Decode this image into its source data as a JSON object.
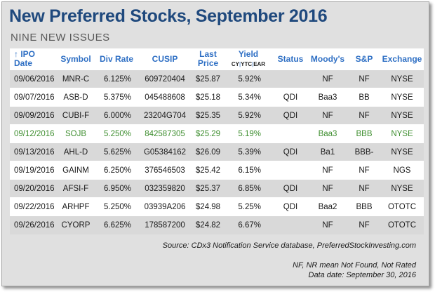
{
  "title": "New Preferred Stocks, September 2016",
  "subtitle": "NINE NEW ISSUES",
  "colors": {
    "title": "#1f497d",
    "header": "#2e6fc4",
    "highlight_row_text": "#3e8e2f",
    "band": "#d9d9d9"
  },
  "table": {
    "headers": {
      "ipo_date": "↑ IPO Date",
      "symbol": "Symbol",
      "div_rate": "Div Rate",
      "cusip": "CUSIP",
      "last_price_1": "Last",
      "last_price_2": "Price",
      "yield": "Yield",
      "yield_sub_cy": "CY",
      "yield_sub_sep1": "|",
      "yield_sub_ytc": "YTC",
      "yield_sub_sep2": "|",
      "yield_sub_ear": "EAR",
      "status": "Status",
      "moodys": "Moody's",
      "sp": "S&P",
      "exchange": "Exchange"
    },
    "rows": [
      {
        "date": "09/06/2016",
        "symbol": "MNR-C",
        "rate": "6.125%",
        "cusip": "609720404",
        "price": "$25.87",
        "yield": "5.92%",
        "status": "",
        "moodys": "NF",
        "sp": "NF",
        "exchange": "NYSE"
      },
      {
        "date": "09/07/2016",
        "symbol": "ASB-D",
        "rate": "5.375%",
        "cusip": "045488608",
        "price": "$25.18",
        "yield": "5.34%",
        "status": "QDI",
        "moodys": "Baa3",
        "sp": "BB",
        "exchange": "NYSE"
      },
      {
        "date": "09/09/2016",
        "symbol": "CUBI-F",
        "rate": "6.000%",
        "cusip": "23204G704",
        "price": "$25.35",
        "yield": "5.92%",
        "status": "QDI",
        "moodys": "NF",
        "sp": "NF",
        "exchange": "NYSE"
      },
      {
        "date": "09/12/2016",
        "symbol": "SOJB",
        "rate": "5.250%",
        "cusip": "842587305",
        "price": "$25.29",
        "yield": "5.19%",
        "status": "",
        "moodys": "Baa3",
        "sp": "BBB",
        "exchange": "NYSE"
      },
      {
        "date": "09/13/2016",
        "symbol": "AHL-D",
        "rate": "5.625%",
        "cusip": "G05384162",
        "price": "$26.09",
        "yield": "5.39%",
        "status": "QDI",
        "moodys": "Ba1",
        "sp": "BBB-",
        "exchange": "NYSE"
      },
      {
        "date": "09/19/2016",
        "symbol": "GAINM",
        "rate": "6.250%",
        "cusip": "376546503",
        "price": "$25.42",
        "yield": "6.15%",
        "status": "",
        "moodys": "NF",
        "sp": "NF",
        "exchange": "NGS"
      },
      {
        "date": "09/20/2016",
        "symbol": "AFSI-F",
        "rate": "6.950%",
        "cusip": "032359820",
        "price": "$25.37",
        "yield": "6.85%",
        "status": "QDI",
        "moodys": "NF",
        "sp": "NF",
        "exchange": "NYSE"
      },
      {
        "date": "09/22/2016",
        "symbol": "ARHPF",
        "rate": "5.250%",
        "cusip": "03939A206",
        "price": "$24.98",
        "yield": "5.25%",
        "status": "QDI",
        "moodys": "Baa2",
        "sp": "BBB",
        "exchange": "OTOTC"
      },
      {
        "date": "09/26/2016",
        "symbol": "CYORP",
        "rate": "6.625%",
        "cusip": "178587200",
        "price": "$24.82",
        "yield": "6.67%",
        "status": "",
        "moodys": "NF",
        "sp": "NF",
        "exchange": "OTOTC"
      }
    ],
    "highlighted_row_index": 3
  },
  "source": "Source:  CDx3 Notification Service database, PreferredStockInvesting.com",
  "note_nf": "NF, NR mean Not Found, Not Rated",
  "note_date": "Data date: September 30, 2016"
}
